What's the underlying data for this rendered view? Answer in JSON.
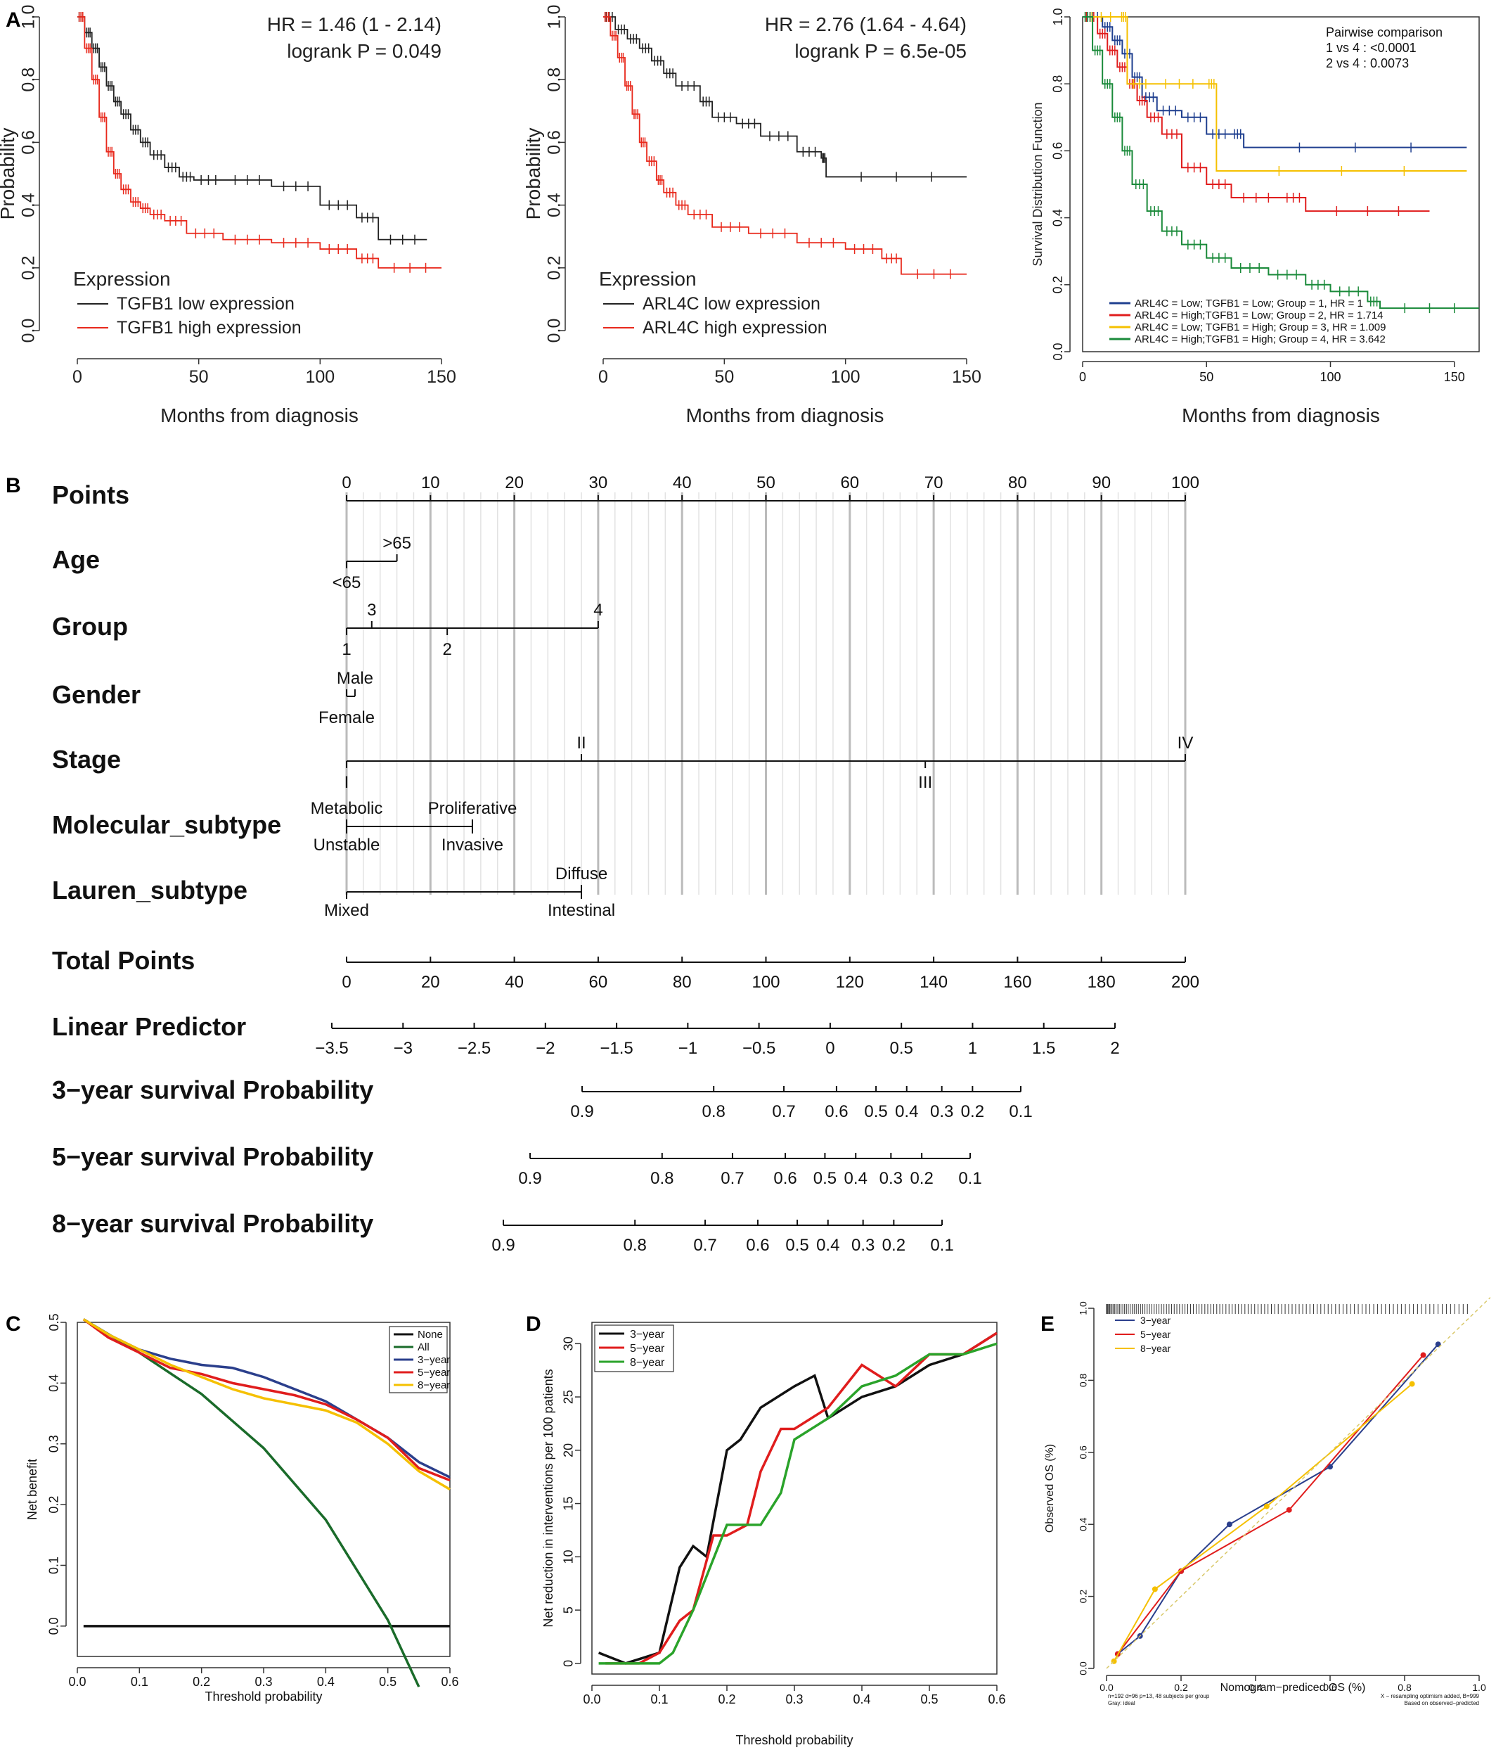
{
  "panel_labels": [
    "A",
    "B",
    "C",
    "D",
    "E"
  ],
  "chart_data": [
    {
      "id": "A1",
      "type": "line",
      "subtype": "kaplan-meier",
      "xlabel": "Months from diagnosis",
      "ylabel": "Probability",
      "xlim": [
        0,
        150
      ],
      "ylim": [
        0,
        1
      ],
      "xticks": [
        "0",
        "50",
        "100",
        "150"
      ],
      "yticks": [
        "0.0",
        "0.2",
        "0.4",
        "0.6",
        "0.8",
        "1.0"
      ],
      "annotation": [
        "HR = 1.46 (1 - 2.14)",
        "logrank P = 0.049"
      ],
      "legend_title": "Expression",
      "legend_position": "bottom-left",
      "colors": [
        "#222222",
        "#e8291c"
      ],
      "series": [
        {
          "name": "TGFB1 low  expression",
          "x": [
            0,
            3,
            6,
            9,
            12,
            15,
            18,
            22,
            26,
            30,
            36,
            42,
            48,
            60,
            80,
            100,
            115,
            124,
            144
          ],
          "y": [
            1.0,
            0.95,
            0.9,
            0.84,
            0.78,
            0.73,
            0.69,
            0.64,
            0.6,
            0.56,
            0.52,
            0.49,
            0.48,
            0.48,
            0.46,
            0.4,
            0.36,
            0.29,
            0.29
          ]
        },
        {
          "name": "TGFB1 high expression",
          "x": [
            0,
            3,
            6,
            9,
            12,
            15,
            18,
            22,
            26,
            30,
            36,
            45,
            60,
            80,
            100,
            115,
            124,
            150
          ],
          "y": [
            1.0,
            0.9,
            0.8,
            0.68,
            0.57,
            0.5,
            0.45,
            0.41,
            0.39,
            0.37,
            0.35,
            0.31,
            0.29,
            0.28,
            0.26,
            0.23,
            0.2,
            0.2
          ]
        }
      ]
    },
    {
      "id": "A2",
      "type": "line",
      "subtype": "kaplan-meier",
      "xlabel": "Months from diagnosis",
      "ylabel": "Probability",
      "xlim": [
        0,
        150
      ],
      "ylim": [
        0,
        1
      ],
      "xticks": [
        "0",
        "50",
        "100",
        "150"
      ],
      "yticks": [
        "0.0",
        "0.2",
        "0.4",
        "0.6",
        "0.8",
        "1.0"
      ],
      "annotation": [
        "HR = 2.76 (1.64 - 4.64)",
        "logrank P = 6.5e-05"
      ],
      "legend_title": "Expression",
      "legend_position": "bottom-left",
      "colors": [
        "#222222",
        "#e8291c"
      ],
      "series": [
        {
          "name": "ARL4C low  expression",
          "x": [
            0,
            5,
            10,
            15,
            20,
            25,
            30,
            40,
            45,
            55,
            65,
            80,
            90,
            92,
            150
          ],
          "y": [
            1.0,
            0.96,
            0.93,
            0.9,
            0.86,
            0.82,
            0.78,
            0.73,
            0.68,
            0.66,
            0.62,
            0.57,
            0.55,
            0.49,
            0.49
          ]
        },
        {
          "name": "ARL4C high expression",
          "x": [
            0,
            3,
            6,
            9,
            12,
            15,
            18,
            22,
            25,
            30,
            35,
            45,
            60,
            80,
            100,
            115,
            123,
            150
          ],
          "y": [
            1.0,
            0.94,
            0.87,
            0.78,
            0.69,
            0.6,
            0.54,
            0.48,
            0.44,
            0.4,
            0.37,
            0.33,
            0.31,
            0.28,
            0.26,
            0.23,
            0.18,
            0.18
          ]
        }
      ]
    },
    {
      "id": "A3",
      "type": "line",
      "subtype": "kaplan-meier",
      "xlabel": "Months from diagnosis",
      "ylabel": "Survival Distribution Function",
      "xlim": [
        0,
        160
      ],
      "ylim": [
        0,
        1
      ],
      "xticks": [
        "0",
        "50",
        "100",
        "150"
      ],
      "yticks": [
        "0.0",
        "0.2",
        "0.4",
        "0.6",
        "0.8",
        "1.0"
      ],
      "annotation": [
        "Pairwise comparison",
        "1 vs 4 : <0.0001",
        "2 vs 4 : 0.0073"
      ],
      "legend_position": "bottom-left",
      "series": [
        {
          "name": "ARL4C = Low;  TGFB1 = Low;  Group = 1, HR = 1",
          "color": "#1f3f8f",
          "x": [
            0,
            8,
            12,
            16,
            20,
            24,
            30,
            40,
            50,
            60,
            65,
            155
          ],
          "y": [
            1.0,
            0.97,
            0.93,
            0.89,
            0.82,
            0.76,
            0.72,
            0.7,
            0.65,
            0.65,
            0.61,
            0.61
          ]
        },
        {
          "name": "ARL4C = High;TGFB1 = Low;  Group = 2, HR = 1.714",
          "color": "#e01d1d",
          "x": [
            0,
            6,
            10,
            14,
            18,
            22,
            26,
            32,
            40,
            50,
            60,
            80,
            90,
            140
          ],
          "y": [
            1.0,
            0.95,
            0.9,
            0.85,
            0.8,
            0.75,
            0.7,
            0.65,
            0.55,
            0.5,
            0.46,
            0.46,
            0.42,
            0.42
          ]
        },
        {
          "name": "ARL4C = Low; TGFB1 = High; Group = 3, HR = 1.009",
          "color": "#f5c000",
          "x": [
            0,
            15,
            18,
            28,
            50,
            54,
            155
          ],
          "y": [
            1.0,
            1.0,
            0.8,
            0.8,
            0.8,
            0.54,
            0.54
          ]
        },
        {
          "name": "ARL4C = High;TGFB1 = High; Group = 4, HR = 3.642",
          "color": "#1a8a3a",
          "x": [
            0,
            4,
            8,
            12,
            16,
            20,
            26,
            32,
            40,
            50,
            60,
            75,
            90,
            100,
            115,
            120,
            160
          ],
          "y": [
            1.0,
            0.9,
            0.8,
            0.7,
            0.6,
            0.5,
            0.42,
            0.36,
            0.32,
            0.28,
            0.25,
            0.23,
            0.2,
            0.18,
            0.15,
            0.13,
            0.13
          ]
        }
      ]
    },
    {
      "id": "B",
      "type": "nomogram",
      "rows": [
        {
          "label": "Points",
          "scale": "0-100",
          "ticks": [
            "0",
            "10",
            "20",
            "30",
            "40",
            "50",
            "60",
            "70",
            "80",
            "90",
            "100"
          ]
        },
        {
          "label": "Age",
          "levels": [
            {
              "text": "<65",
              "points": 0
            },
            {
              "text": ">65",
              "points": 6
            }
          ]
        },
        {
          "label": "Group",
          "levels": [
            {
              "text": "1",
              "points": 0
            },
            {
              "text": "3",
              "points": 3
            },
            {
              "text": "2",
              "points": 12
            },
            {
              "text": "4",
              "points": 30
            }
          ]
        },
        {
          "label": "Gender",
          "levels": [
            {
              "text": "Male",
              "points": 1
            },
            {
              "text": "Female",
              "points": 0
            }
          ]
        },
        {
          "label": "Stage",
          "levels": [
            {
              "text": "I",
              "points": 0
            },
            {
              "text": "II",
              "points": 28
            },
            {
              "text": "III",
              "points": 69
            },
            {
              "text": "IV",
              "points": 100
            }
          ]
        },
        {
          "label": "Molecular_subtype",
          "levels": [
            {
              "text": "Metabolic",
              "points": 0
            },
            {
              "text": "Unstable",
              "points": 0
            },
            {
              "text": "Proliferative",
              "points": 15
            },
            {
              "text": "Invasive",
              "points": 15
            }
          ]
        },
        {
          "label": "Lauren_subtype",
          "levels": [
            {
              "text": "Mixed",
              "points": 0
            },
            {
              "text": "Diffuse",
              "points": 28
            },
            {
              "text": "Intestinal",
              "points": 28
            }
          ]
        },
        {
          "label": "Total Points",
          "scale": "0-200",
          "ticks": [
            "0",
            "20",
            "40",
            "60",
            "80",
            "100",
            "120",
            "140",
            "160",
            "180",
            "200"
          ]
        },
        {
          "label": "Linear Predictor",
          "ticks": [
            "−3.5",
            "−3",
            "−2.5",
            "−2",
            "−1.5",
            "−1",
            "−0.5",
            "0",
            "0.5",
            "1",
            "1.5",
            "2"
          ]
        },
        {
          "label": "3−year survival Probability",
          "ticks": [
            "0.9",
            "0.8",
            "0.7",
            "0.6",
            "0.5",
            "0.4",
            "0.3",
            "0.2",
            "0.1"
          ]
        },
        {
          "label": "5−year survival Probability",
          "ticks": [
            "0.9",
            "0.8",
            "0.7",
            "0.6",
            "0.5",
            "0.4",
            "0.3",
            "0.2",
            "0.1"
          ]
        },
        {
          "label": "8−year survival Probability",
          "ticks": [
            "0.9",
            "0.8",
            "0.7",
            "0.6",
            "0.5",
            "0.4",
            "0.3",
            "0.2",
            "0.1"
          ]
        }
      ]
    },
    {
      "id": "C",
      "type": "line",
      "subtype": "decision-curve",
      "xlabel": "Threshold probability",
      "ylabel": "Net benefit",
      "xlim": [
        0,
        0.6
      ],
      "ylim": [
        -0.05,
        0.5
      ],
      "xticks": [
        "0.0",
        "0.1",
        "0.2",
        "0.3",
        "0.4",
        "0.5",
        "0.6"
      ],
      "yticks": [
        "0.0",
        "0.1",
        "0.2",
        "0.3",
        "0.4",
        "0.5"
      ],
      "legend_position": "top-right",
      "series": [
        {
          "name": "None",
          "color": "#111111",
          "x": [
            0.01,
            0.6
          ],
          "y": [
            0,
            0
          ]
        },
        {
          "name": "All",
          "color": "#1a6b2a",
          "x": [
            0.01,
            0.1,
            0.2,
            0.3,
            0.4,
            0.5,
            0.55
          ],
          "y": [
            0.505,
            0.45,
            0.382,
            0.293,
            0.175,
            0.01,
            -0.1
          ]
        },
        {
          "name": "3−year",
          "color": "#2b3f8c",
          "x": [
            0.01,
            0.05,
            0.1,
            0.15,
            0.2,
            0.25,
            0.3,
            0.35,
            0.4,
            0.45,
            0.5,
            0.55,
            0.6
          ],
          "y": [
            0.505,
            0.48,
            0.455,
            0.44,
            0.43,
            0.425,
            0.41,
            0.39,
            0.37,
            0.34,
            0.31,
            0.27,
            0.245
          ]
        },
        {
          "name": "5−year",
          "color": "#e01d1d",
          "x": [
            0.01,
            0.05,
            0.1,
            0.15,
            0.2,
            0.25,
            0.3,
            0.35,
            0.4,
            0.45,
            0.5,
            0.55,
            0.6
          ],
          "y": [
            0.505,
            0.475,
            0.45,
            0.425,
            0.415,
            0.4,
            0.39,
            0.38,
            0.365,
            0.34,
            0.31,
            0.26,
            0.24
          ]
        },
        {
          "name": "8−year",
          "color": "#f5c000",
          "x": [
            0.01,
            0.05,
            0.1,
            0.15,
            0.2,
            0.25,
            0.3,
            0.35,
            0.4,
            0.45,
            0.5,
            0.55,
            0.6
          ],
          "y": [
            0.505,
            0.48,
            0.455,
            0.43,
            0.41,
            0.39,
            0.375,
            0.365,
            0.355,
            0.335,
            0.3,
            0.255,
            0.225
          ]
        }
      ]
    },
    {
      "id": "D",
      "type": "line",
      "subtype": "clinical-impact",
      "xlabel": "Threshold probability",
      "ylabel": "Net reduction in interventions per 100 patients",
      "xlim": [
        0,
        0.6
      ],
      "ylim": [
        -1,
        32
      ],
      "xticks": [
        "0.0",
        "0.1",
        "0.2",
        "0.3",
        "0.4",
        "0.5",
        "0.6"
      ],
      "yticks": [
        "0",
        "5",
        "10",
        "15",
        "20",
        "25",
        "30"
      ],
      "legend_position": "top-left",
      "series": [
        {
          "name": "3−year",
          "color": "#111111",
          "x": [
            0.01,
            0.05,
            0.1,
            0.13,
            0.15,
            0.17,
            0.2,
            0.22,
            0.25,
            0.3,
            0.33,
            0.35,
            0.4,
            0.45,
            0.5,
            0.55,
            0.6
          ],
          "y": [
            1,
            0,
            1,
            9,
            11,
            10,
            20,
            21,
            24,
            26,
            27,
            23,
            25,
            26,
            28,
            29,
            31
          ]
        },
        {
          "name": "5−year",
          "color": "#e01d1d",
          "x": [
            0.02,
            0.07,
            0.1,
            0.13,
            0.15,
            0.18,
            0.2,
            0.23,
            0.25,
            0.28,
            0.3,
            0.35,
            0.4,
            0.45,
            0.5,
            0.55,
            0.6
          ],
          "y": [
            0,
            0,
            1,
            4,
            5,
            12,
            12,
            13,
            18,
            22,
            22,
            24,
            28,
            26,
            29,
            29,
            31
          ]
        },
        {
          "name": "8−year",
          "color": "#2aa32a",
          "x": [
            0.01,
            0.05,
            0.1,
            0.12,
            0.15,
            0.2,
            0.25,
            0.28,
            0.3,
            0.35,
            0.4,
            0.45,
            0.5,
            0.55,
            0.6
          ],
          "y": [
            0,
            0,
            0,
            1,
            5,
            13,
            13,
            16,
            21,
            23,
            26,
            27,
            29,
            29,
            30
          ]
        }
      ]
    },
    {
      "id": "E",
      "type": "line",
      "subtype": "calibration",
      "xlabel": "Nomogram−prediced OS (%)",
      "ylabel": "Observed OS (%)",
      "xlim": [
        0,
        1
      ],
      "ylim": [
        0,
        1
      ],
      "xticks": [
        "0.0",
        "0.2",
        "0.4",
        "0.6",
        "0.8",
        "1.0"
      ],
      "yticks": [
        "0.0",
        "0.2",
        "0.4",
        "0.6",
        "0.8",
        "1.0"
      ],
      "legend_position": "top-left",
      "footnote_left": "n=192 d=96 p=13, 48 subjects per group\nGray: ideal",
      "footnote_right": "X − resampling optimism added, B=999\nBased on observed−predicted",
      "series": [
        {
          "name": "3−year",
          "color": "#2b3f8c",
          "x": [
            0.03,
            0.09,
            0.2,
            0.33,
            0.6,
            0.89
          ],
          "y": [
            0.04,
            0.09,
            0.27,
            0.4,
            0.56,
            0.9
          ]
        },
        {
          "name": "5−year",
          "color": "#e01d1d",
          "x": [
            0.03,
            0.2,
            0.49,
            0.85
          ],
          "y": [
            0.04,
            0.27,
            0.44,
            0.87
          ]
        },
        {
          "name": "8−year",
          "color": "#f5c000",
          "x": [
            0.02,
            0.13,
            0.43,
            0.82
          ],
          "y": [
            0.02,
            0.22,
            0.45,
            0.79
          ]
        }
      ]
    }
  ]
}
